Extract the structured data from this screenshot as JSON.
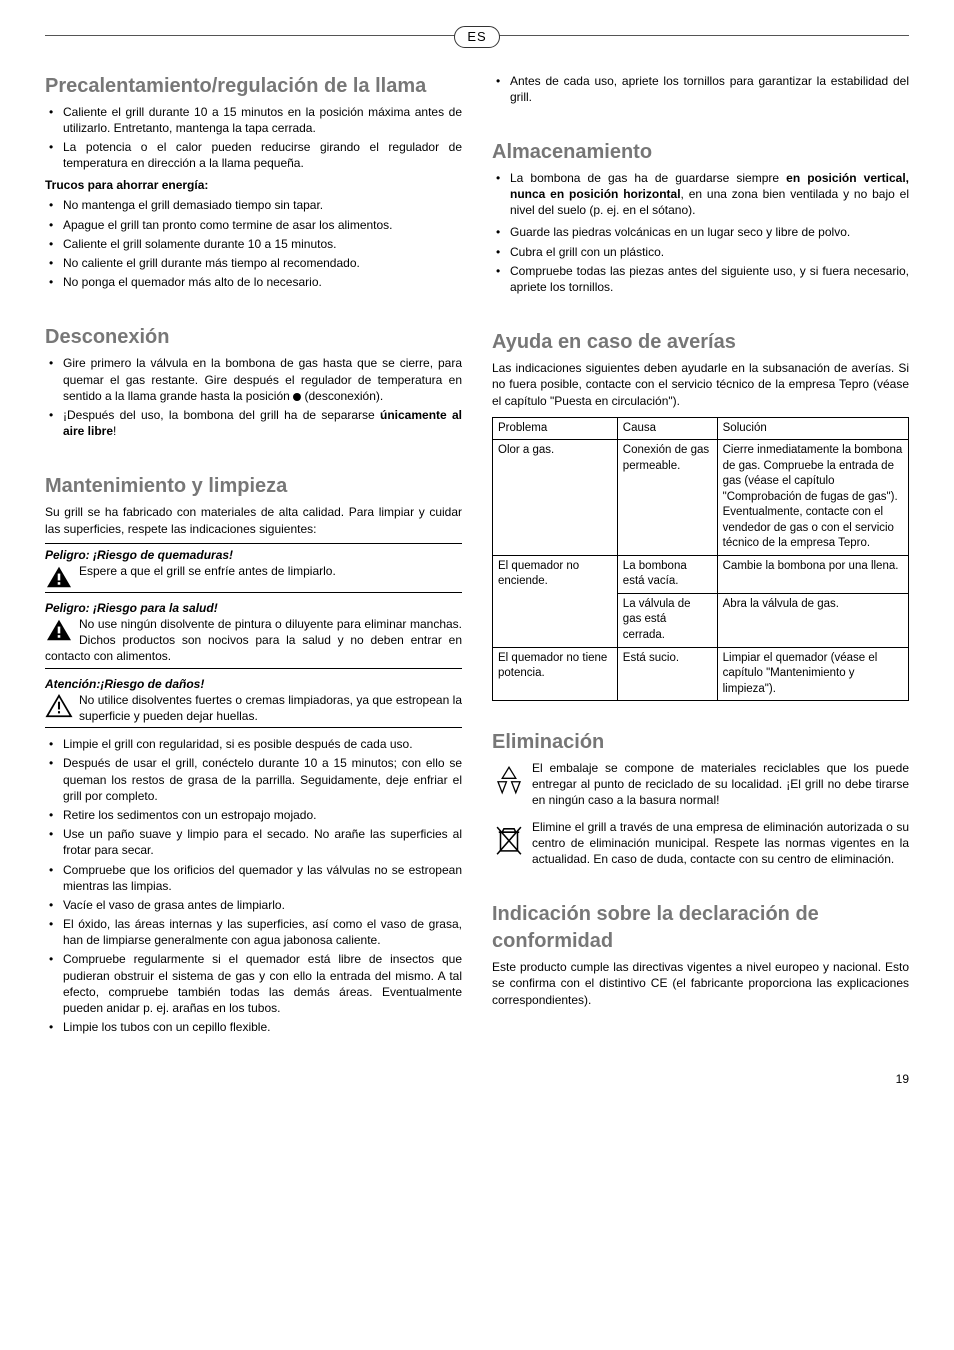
{
  "langBadge": "ES",
  "pageNumber": "19",
  "left": {
    "h1": "Precalentamiento/regulación de la llama",
    "b1": [
      "Caliente el grill durante 10 a 15 minutos en la posición máxima antes de utilizarlo.\nEntretanto, mantenga la tapa cerrada.",
      "La potencia o el calor pueden reducirse girando el regulador de temperatura en dirección a la llama pequeña."
    ],
    "sub1": "Trucos para ahorrar energía:",
    "b2": [
      "No mantenga el grill demasiado tiempo sin tapar.",
      "Apague el grill tan pronto como termine de asar los alimentos.",
      "Caliente el grill solamente durante 10 a 15 minutos.",
      "No caliente el grill durante más tiempo al recomendado.",
      "No ponga el quemador más alto de lo necesario."
    ],
    "h2": "Desconexión",
    "b3a_pre": "Gire primero la válvula en la bombona de gas hasta que se cierre, para quemar el gas restante. Gire después el regulador de temperatura en sentido a la llama grande hasta la posición ",
    "b3a_post": " (desconexión).",
    "b3b_pre": "¡Después del uso, la bombona del grill ha de separarse ",
    "b3b_bold": "únicamente al aire libre",
    "b3b_post": "!",
    "h3": "Mantenimiento y limpieza",
    "intro3": "Su grill se ha fabricado con materiales de alta calidad. Para limpiar y cuidar las superficies, respete las indicaciones siguientes:",
    "warn1_title": "Peligro: ¡Riesgo de quemaduras!",
    "warn1_body": "Espere a que el grill se enfríe antes de limpiarlo.",
    "warn2_title": "Peligro: ¡Riesgo para la salud!",
    "warn2_body": "No use ningún disolvente de pintura o diluyente para eliminar manchas. Dichos productos son nocivos para la salud y no deben entrar en contacto con alimentos.",
    "warn3_title": "Atención:¡Riesgo de daños!",
    "warn3_body": "No utilice disolventes fuertes o cremas limpiadoras, ya que estropean la superficie y pueden dejar huellas.",
    "b4": [
      "Limpie el grill con regularidad, si es posible después de cada uso.",
      "Después de usar el grill, conéctelo durante 10 a 15 minutos; con ello se queman los restos de grasa de la parrilla. Seguidamente, deje enfriar el grill por completo.",
      "Retire los sedimentos con un estropajo mojado.",
      "Use un paño suave y limpio para el secado. No arañe las superficies al frotar para secar.",
      "Compruebe que los orificios del quemador y las válvulas no se estropean mientras las limpias.",
      "Vacíe el vaso de grasa antes de limpiarlo.",
      "El óxido, las áreas internas y las superficies, así como el vaso de grasa, han de limpiarse generalmente con agua jabonosa caliente.",
      "Compruebe regularmente si el quemador está libre de insectos que pudieran obstruir el sistema de gas y con ello la entrada del mismo. A tal efecto, compruebe también todas las demás áreas. Eventualmente pueden anidar p. ej. arañas en los tubos.",
      "Limpie los tubos con un cepillo flexible."
    ]
  },
  "right": {
    "b0": [
      "Antes de cada uso, apriete los tornillos para garantizar la estabilidad del grill."
    ],
    "h1": "Almacenamiento",
    "b1a_pre": "La bombona de gas ha de guardarse siempre ",
    "b1a_bold": "en posición vertical, nunca en posición horizontal",
    "b1a_post": ", en una zona bien ventilada y no bajo el nivel del suelo (p. ej. en el sótano).",
    "b1_rest": [
      "Guarde las piedras volcánicas en un lugar seco y libre de polvo.",
      "Cubra el grill con un plástico.",
      "Compruebe todas las piezas antes del siguiente uso, y si fuera necesario, apriete los tornillos."
    ],
    "h2": "Ayuda en caso de averías",
    "intro2": "Las indicaciones siguientes deben ayudarle en la subsanación de averías. Si no fuera posible, contacte con el servicio técnico de la empresa Tepro (véase el capítulo \"Puesta en circulación\").",
    "table": {
      "headers": [
        "Problema",
        "Causa",
        "Solución"
      ],
      "rows": [
        {
          "p": "Olor a gas.",
          "c": "Conexión de gas permeable.",
          "s": "Cierre inmediatamente la bombona de gas. Compruebe la entrada de gas (véase el capítulo \"Comprobación de fugas de gas\"). Eventualmente, contacte con el vendedor de gas o con el servicio técnico de la empresa Tepro."
        },
        {
          "p": "El quemador no enciende.",
          "c": "La bombona está vacía.",
          "s": "Cambie la bombona por una llena.",
          "rowspan": 2
        },
        {
          "p": "",
          "c": "La válvula de gas está cerrada.",
          "s": "Abra la válvula de gas."
        },
        {
          "p": "El quemador no tiene potencia.",
          "c": "Está sucio.",
          "s": "Limpiar el quemador (véase el capítulo \"Mantenimiento y limpieza\")."
        }
      ]
    },
    "h3": "Eliminación",
    "elim1": "El embalaje se compone de materiales reciclables que los puede entregar al punto de reciclado de su localidad. ¡El grill no debe tirarse en ningún caso a la basura normal!",
    "elim2": "Elimine el grill a través de una empresa de eliminación autorizada o su centro de eliminación municipal. Respete las normas vigentes en la actualidad. En caso de duda, contacte con su centro de eliminación.",
    "h4": "Indicación sobre la declaración de conformidad",
    "conf": "Este producto cumple las directivas vigentes a nivel europeo y nacional. Esto se confirma con el distintivo CE (el fabricante proporciona las explicaciones correspondientes)."
  }
}
